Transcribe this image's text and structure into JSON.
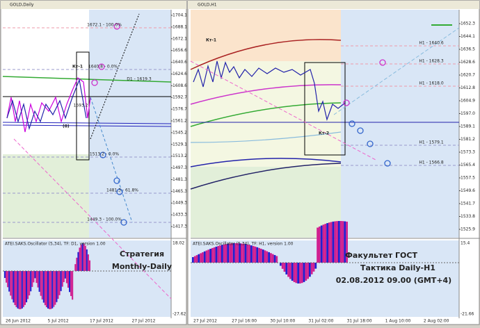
{
  "windows": [
    {
      "title": "GOLD,Daily",
      "price_labels": [
        "1704.1",
        "1688.1",
        "1672.1",
        "1656.6",
        "1640.6",
        "1624.6",
        "1608.6",
        "1592.7",
        "1576.7",
        "1561.2",
        "1545.2",
        "1529.1",
        "1513.2",
        "1497.3",
        "1481.3",
        "1465.3",
        "1449.3",
        "1433.3",
        "1417.3"
      ],
      "levels": [
        "1672.1 - 100.0%",
        "1640.8 - 0.0%",
        "D1 - 1619.3",
        "1593.2",
        "1513.2 - 0.0%",
        "1481.3 - 61.8%",
        "1449.3 - 100.0%",
        "Кт-1",
        "(0)"
      ],
      "oscillator": {
        "title": "ATEI.SAKS.Oscillator (5,34), TF: D1, version 1.00",
        "scale": [
          "18.02",
          "-27.62"
        ]
      },
      "time_labels": [
        "26 Jun 2012",
        "5 Jul 2012",
        "17 Jul 2012",
        "27 Jul 2012"
      ],
      "caption": [
        "Стратегия",
        "Monthly-Daily"
      ]
    },
    {
      "title": "GOLD,H1",
      "price_labels": [
        "1652.3",
        "1644.1",
        "1636.5",
        "1628.6",
        "1620.7",
        "1612.8",
        "1604.9",
        "1597.0",
        "1589.1",
        "1581.2",
        "1573.3",
        "1565.4",
        "1557.5",
        "1549.6",
        "1541.7",
        "1533.8",
        "1525.9"
      ],
      "levels": [
        "H1 - 1640.6",
        "H1 - 1628.3",
        "H1 - 1618.0",
        "H1 - 1579.1",
        "H1 - 1566.8",
        "Кт-1",
        "Кт-2"
      ],
      "oscillator": {
        "title": "ATEI.SAKS.Oscillator (5,34), TF: H1, version 1.00",
        "scale": [
          "15.4",
          "-21.66"
        ]
      },
      "time_labels": [
        "27 Jul 2012",
        "27 Jul 16:00",
        "30 Jul 10:00",
        "31 Jul 02:00",
        "31 Jul 18:00",
        "1 Aug 10:00",
        "2 Aug 02:00"
      ],
      "caption": [
        "Факультет ГОСТ",
        "Тактика Daily-H1",
        "02.08.2012   09.00 (GMT+4)"
      ]
    }
  ]
}
